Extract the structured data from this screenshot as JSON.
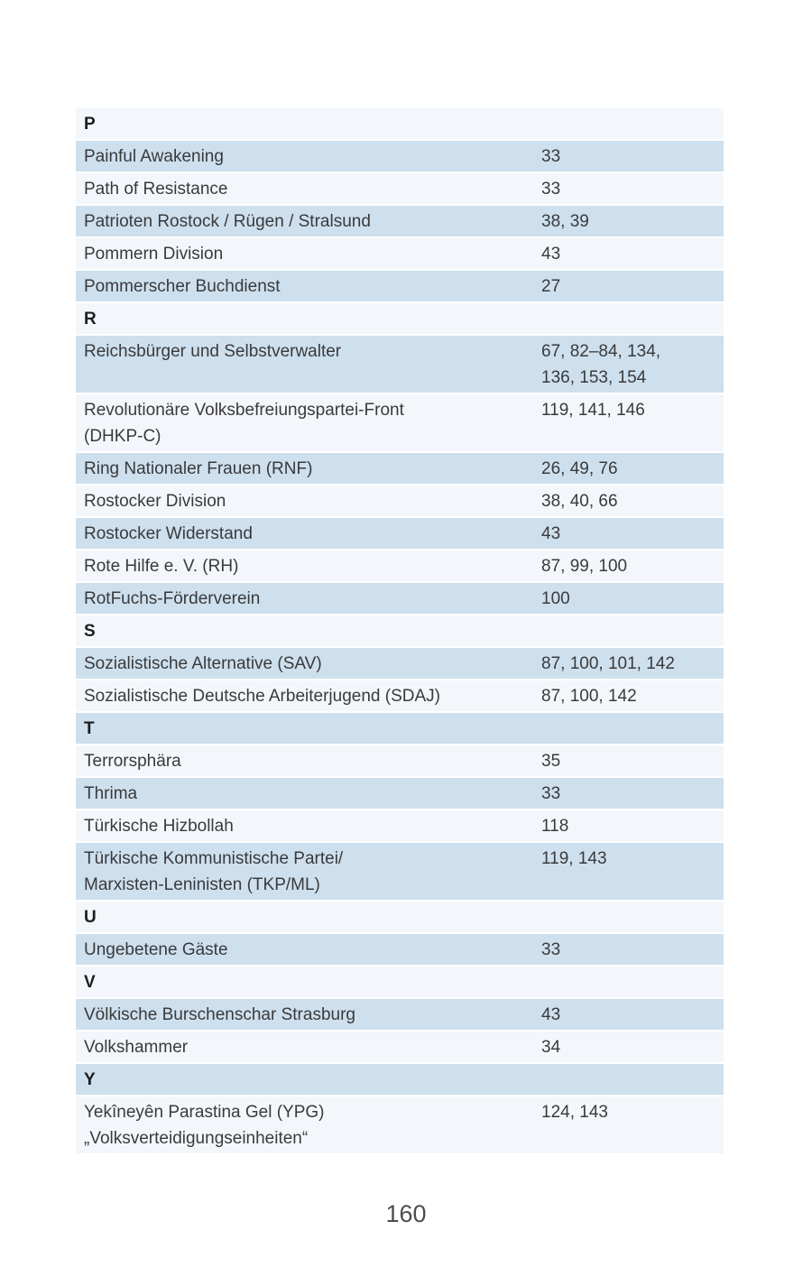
{
  "document": {
    "kind": "report-index-page",
    "page_number": "160"
  },
  "colors": {
    "stripe_dark": "#cee0ee",
    "stripe_light": "#f3f7fb",
    "text": "#3a3a3b",
    "letter_header": "#1d1d1b",
    "page_number": "#4d4d4d"
  },
  "index": {
    "rows": [
      {
        "type": "letter",
        "label": "P"
      },
      {
        "type": "entry",
        "term": "Painful Awakening",
        "pages": "33"
      },
      {
        "type": "entry",
        "term": "Path of Resistance",
        "pages": "33"
      },
      {
        "type": "entry",
        "term": "Patrioten Rostock / Rügen / Stralsund",
        "pages": "38, 39"
      },
      {
        "type": "entry",
        "term": "Pommern Division",
        "pages": "43"
      },
      {
        "type": "entry",
        "term": "Pommerscher Buchdienst",
        "pages": "27"
      },
      {
        "type": "letter",
        "label": "R"
      },
      {
        "type": "entry",
        "term": "Reichsbürger und Selbstverwalter",
        "pages": "67, 82–84, 134,\n136, 153, 154"
      },
      {
        "type": "entry",
        "term": "Revolutionäre Volksbefreiungspartei-Front\n(DHKP-C)",
        "pages": "119, 141, 146"
      },
      {
        "type": "entry",
        "term": "Ring Nationaler Frauen (RNF)",
        "pages": "26, 49, 76"
      },
      {
        "type": "entry",
        "term": "Rostocker Division",
        "pages": "38, 40, 66"
      },
      {
        "type": "entry",
        "term": "Rostocker Widerstand",
        "pages": "43"
      },
      {
        "type": "entry",
        "term": "Rote Hilfe e. V. (RH)",
        "pages": "87, 99, 100"
      },
      {
        "type": "entry",
        "term": "RotFuchs-Förderverein",
        "pages": "100"
      },
      {
        "type": "letter",
        "label": "S"
      },
      {
        "type": "entry",
        "term": "Sozialistische Alternative (SAV)",
        "pages": "87, 100, 101, 142"
      },
      {
        "type": "entry",
        "term": "Sozialistische Deutsche Arbeiterjugend (SDAJ)",
        "pages": "87, 100, 142"
      },
      {
        "type": "letter",
        "label": "T"
      },
      {
        "type": "entry",
        "term": "Terrorsphära",
        "pages": "35"
      },
      {
        "type": "entry",
        "term": "Thrima",
        "pages": "33"
      },
      {
        "type": "entry",
        "term": "Türkische Hizbollah",
        "pages": "118"
      },
      {
        "type": "entry",
        "term": "Türkische Kommunistische Partei/\nMarxisten-Leninisten (TKP/ML)",
        "pages": "119, 143"
      },
      {
        "type": "letter",
        "label": "U"
      },
      {
        "type": "entry",
        "term": "Ungebetene Gäste",
        "pages": "33"
      },
      {
        "type": "letter",
        "label": "V"
      },
      {
        "type": "entry",
        "term": "Völkische Burschenschar Strasburg",
        "pages": "43"
      },
      {
        "type": "entry",
        "term": "Volkshammer",
        "pages": "34"
      },
      {
        "type": "letter",
        "label": "Y"
      },
      {
        "type": "entry",
        "term": "Yekîneyên Parastina Gel (YPG)\n„Volksverteidigungseinheiten“",
        "pages": "124, 143"
      }
    ]
  }
}
